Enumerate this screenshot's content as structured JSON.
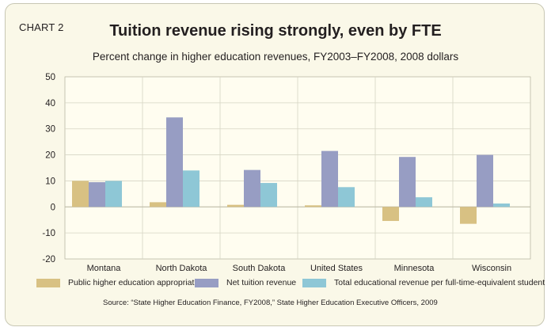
{
  "chart_label": "CHART 2",
  "chart_data": {
    "type": "bar",
    "title": "Tuition revenue rising strongly, even by FTE",
    "subtitle": "Percent change in higher education revenues, FY2003–FY2008, 2008 dollars",
    "categories": [
      "Montana",
      "North Dakota",
      "South Dakota",
      "United States",
      "Minnesota",
      "Wisconsin"
    ],
    "series": [
      {
        "name": "Public higher education appropriations",
        "color": "#d8c183",
        "values": [
          10,
          1.8,
          0.8,
          0.6,
          -5.4,
          -6.5
        ]
      },
      {
        "name": "Net tuition revenue",
        "color": "#979dc3",
        "values": [
          9.5,
          34.4,
          14.2,
          21.5,
          19.2,
          20
        ]
      },
      {
        "name": "Total educational revenue per full-time-equivalent student",
        "color": "#8ec7d6",
        "values": [
          10,
          14,
          9.2,
          7.6,
          3.7,
          1.3
        ]
      }
    ],
    "ylim": [
      -20,
      50
    ],
    "yticks": [
      "50",
      "40",
      "30",
      "20",
      "10",
      "0",
      "-10",
      "-20"
    ],
    "grid": true,
    "legend_position": "bottom"
  },
  "source": "Source: “State Higher Education Finance, FY2008,” State Higher Education Executive Officers, 2009"
}
